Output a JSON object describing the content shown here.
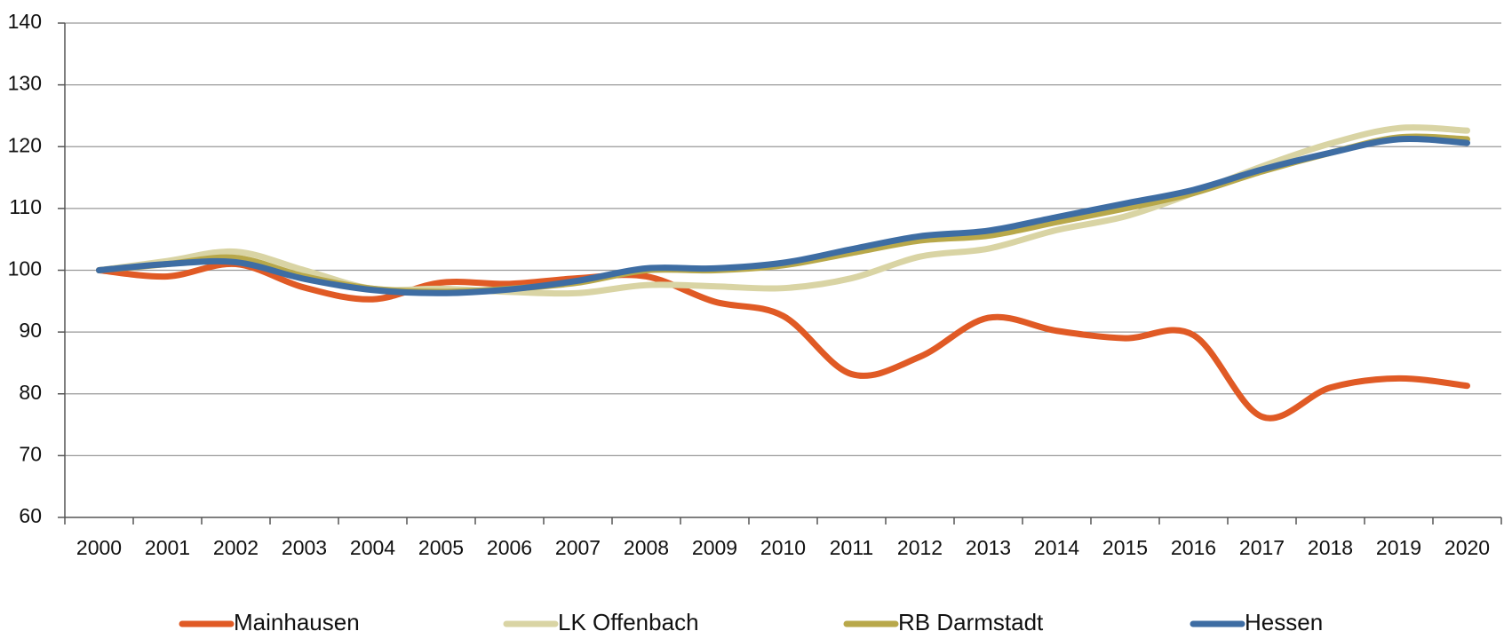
{
  "chart_data": {
    "type": "line",
    "categories": [
      "2000",
      "2001",
      "2002",
      "2003",
      "2004",
      "2005",
      "2006",
      "2007",
      "2008",
      "2009",
      "2010",
      "2011",
      "2012",
      "2013",
      "2014",
      "2015",
      "2016",
      "2017",
      "2018",
      "2019",
      "2020"
    ],
    "series": [
      {
        "name": "Mainhausen",
        "color": "#e05a25",
        "values": [
          100,
          99,
          101,
          97.2,
          95.3,
          98,
          97.8,
          98.7,
          99,
          94.9,
          92.6,
          83.2,
          86,
          92.3,
          90.2,
          89,
          89.5,
          76.3,
          81,
          82.5,
          81.3
        ]
      },
      {
        "name": "LK Offenbach",
        "color": "#d9d4a4",
        "values": [
          100,
          101.5,
          103,
          100,
          97,
          97,
          96.5,
          96.3,
          97.6,
          97.4,
          97.1,
          98.7,
          102.2,
          103.5,
          106.5,
          108.7,
          112.5,
          116.8,
          120.5,
          123,
          122.6
        ]
      },
      {
        "name": "RB Darmstadt",
        "color": "#b8a84a",
        "values": [
          100,
          101,
          102,
          99,
          97,
          96.5,
          97,
          98,
          100,
          100,
          100.8,
          102.8,
          104.8,
          105.6,
          107.8,
          110,
          112.5,
          116,
          119,
          121.5,
          121.2
        ]
      },
      {
        "name": "Hessen",
        "color": "#3e6da3",
        "values": [
          100,
          101,
          101.3,
          98.6,
          96.8,
          96.3,
          96.9,
          98.3,
          100.3,
          100.3,
          101.2,
          103.4,
          105.5,
          106.4,
          108.6,
          110.8,
          113,
          116.3,
          119,
          121.2,
          120.6
        ]
      }
    ],
    "ylim": [
      60,
      140
    ],
    "yticks": [
      60,
      70,
      80,
      90,
      100,
      110,
      120,
      130,
      140
    ],
    "grid": true,
    "legend": "bottom"
  }
}
